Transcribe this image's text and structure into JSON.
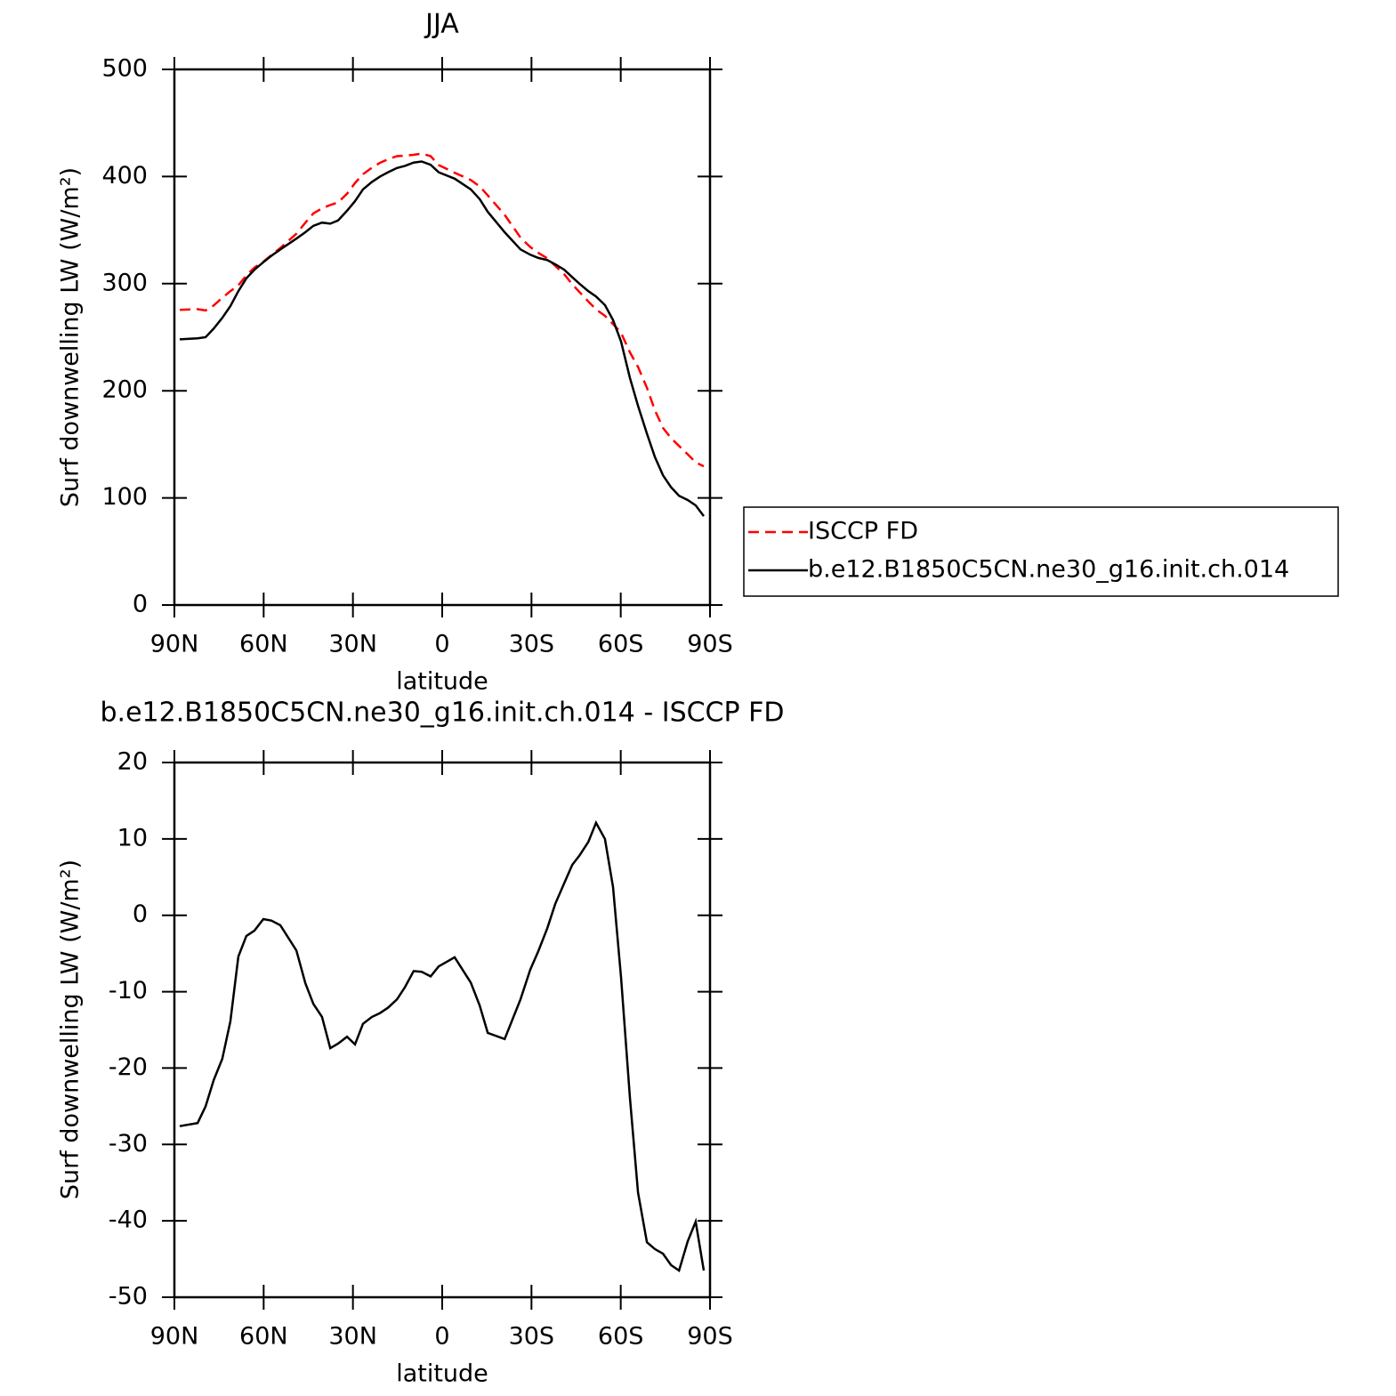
{
  "chart_data": [
    {
      "type": "line",
      "title": "JJA",
      "xlabel": "latitude",
      "ylabel": "Surf downwelling LW (W/m²)",
      "x": [
        88.2,
        82.2,
        79.5,
        76.8,
        73.9,
        71.2,
        68.5,
        65.8,
        63.1,
        60.1,
        57.4,
        54.4,
        49,
        46,
        43.3,
        40.4,
        37.6,
        35,
        32,
        29.3,
        26.6,
        23.6,
        20.9,
        18.2,
        15.2,
        12.5,
        9.6,
        6.9,
        3.9,
        1.2,
        -4.2,
        -9.6,
        -12.6,
        -15.3,
        -21,
        -26.3,
        -29.6,
        -32.3,
        -35.3,
        -38,
        -41,
        -43.7,
        -46.1,
        -49.1,
        -51.7,
        -54.7,
        -57.4,
        -60.1,
        -63.1,
        -65.8,
        -68.8,
        -71.5,
        -74.2,
        -76.9,
        -79.6,
        -82.5,
        -85.2,
        -87.9
      ],
      "series": [
        {
          "name": "ISCCP FD",
          "color": "#ff0000",
          "dash": "dashed",
          "values": [
            275.6,
            276.2,
            275,
            279.6,
            286.8,
            292.9,
            298.4,
            307.7,
            315,
            320.5,
            326.7,
            333.3,
            346.6,
            356.9,
            365.6,
            370.3,
            373.4,
            375.8,
            383.9,
            393.9,
            402.2,
            408.3,
            412.8,
            416.1,
            419,
            419.4,
            420.3,
            421.4,
            419,
            410.7,
            403.5,
            396.8,
            390.8,
            382.4,
            364.2,
            343,
            334.1,
            328.7,
            323.7,
            316.5,
            308.8,
            299.4,
            292.2,
            283.4,
            275.9,
            270,
            262.3,
            254.1,
            235.9,
            222.3,
            202.8,
            181.7,
            165.3,
            155.8,
            148.5,
            140.7,
            133.1,
            129.5
          ]
        },
        {
          "name": "b.e12.B1850C5CN.ne30_g16.init.ch.014",
          "color": "#000000",
          "dash": "solid",
          "values": [
            248,
            249,
            250,
            258,
            268,
            279,
            293,
            305,
            313,
            320,
            326,
            332,
            342,
            348,
            354,
            357,
            356,
            359,
            368,
            377,
            388,
            395,
            400,
            404,
            408,
            410,
            413,
            414,
            411,
            404,
            398,
            388,
            379,
            367,
            348,
            332,
            327,
            324,
            322,
            318,
            313,
            306,
            300,
            293,
            288,
            280,
            266,
            246,
            212,
            186,
            160,
            138,
            121,
            110,
            102,
            98,
            93,
            83
          ]
        }
      ],
      "xlim": [
        90,
        -90
      ],
      "xticks": [
        {
          "value": 90,
          "label": "90N"
        },
        {
          "value": 60,
          "label": "60N"
        },
        {
          "value": 30,
          "label": "30N"
        },
        0,
        {
          "value": -30,
          "label": "30S"
        },
        {
          "value": -60,
          "label": "60S"
        },
        {
          "value": -90,
          "label": "90S"
        }
      ],
      "ylim": [
        0,
        500
      ],
      "yticks": [
        0,
        100,
        200,
        300,
        400,
        500
      ],
      "legend": "right"
    },
    {
      "type": "line",
      "title": "b.e12.B1850C5CN.ne30_g16.init.ch.014 - ISCCP FD",
      "xlabel": "latitude",
      "ylabel": "Surf downwelling LW (W/m²)",
      "x": [
        88.2,
        82.2,
        79.5,
        76.8,
        73.9,
        71.2,
        68.5,
        65.8,
        63.1,
        60.1,
        57.4,
        54.4,
        49,
        46,
        43.3,
        40.4,
        37.6,
        35,
        32,
        29.3,
        26.6,
        23.6,
        20.9,
        18.2,
        15.2,
        12.5,
        9.6,
        6.9,
        3.9,
        1.2,
        -4.2,
        -9.6,
        -12.6,
        -15.3,
        -21,
        -26.3,
        -29.6,
        -32.3,
        -35.3,
        -38,
        -41,
        -43.7,
        -46.1,
        -49.1,
        -51.7,
        -54.7,
        -57.4,
        -60.1,
        -63.1,
        -65.8,
        -68.8,
        -71.5,
        -74.2,
        -76.9,
        -79.6,
        -82.5,
        -85.2,
        -87.9
      ],
      "series": [
        {
          "color": "#000000",
          "dash": "solid",
          "values": [
            -27.6,
            -27.2,
            -25,
            -21.6,
            -18.8,
            -13.9,
            -5.4,
            -2.7,
            -2,
            -0.5,
            -0.7,
            -1.3,
            -4.6,
            -8.9,
            -11.6,
            -13.3,
            -17.4,
            -16.8,
            -15.9,
            -16.9,
            -14.2,
            -13.3,
            -12.8,
            -12.1,
            -11,
            -9.4,
            -7.3,
            -7.4,
            -8,
            -6.7,
            -5.5,
            -8.8,
            -11.8,
            -15.4,
            -16.2,
            -11,
            -7.1,
            -4.7,
            -1.7,
            1.5,
            4.2,
            6.6,
            7.8,
            9.6,
            12.1,
            10,
            3.7,
            -8.1,
            -23.9,
            -36.3,
            -42.8,
            -43.7,
            -44.3,
            -45.8,
            -46.5,
            -42.7,
            -40.1,
            -46.5
          ]
        }
      ],
      "xlim": [
        90,
        -90
      ],
      "xticks": [
        {
          "value": 90,
          "label": "90N"
        },
        {
          "value": 60,
          "label": "60N"
        },
        {
          "value": 30,
          "label": "30N"
        },
        0,
        {
          "value": -30,
          "label": "30S"
        },
        {
          "value": -60,
          "label": "60S"
        },
        {
          "value": -90,
          "label": "90S"
        }
      ],
      "ylim": [
        -50,
        20
      ],
      "yticks": [
        -50,
        -40,
        -30,
        -20,
        -10,
        0,
        10,
        20
      ]
    }
  ]
}
